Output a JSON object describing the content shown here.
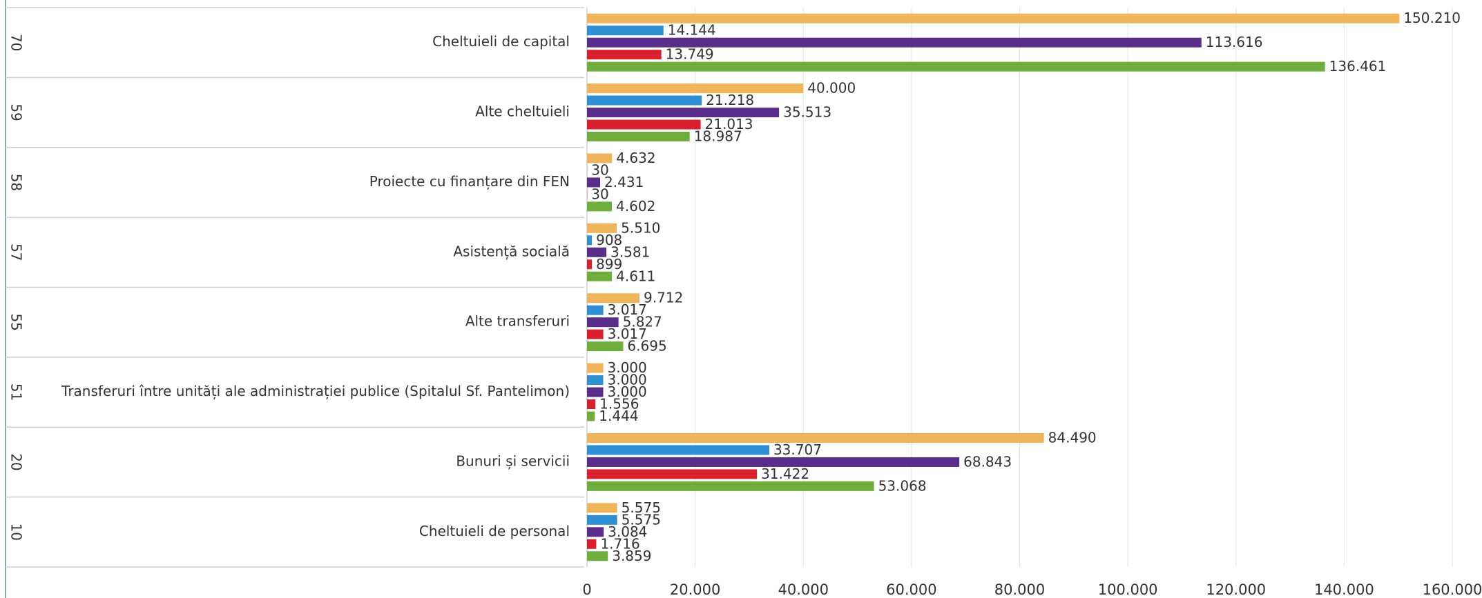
{
  "chart_data": {
    "type": "bar",
    "orientation": "horizontal",
    "codes": [
      "70",
      "59",
      "58",
      "57",
      "55",
      "51",
      "20",
      "10"
    ],
    "categories": [
      "Cheltuieli de capital",
      "Alte cheltuieli",
      "Proiecte cu finanțare din FEN",
      "Asistență socială",
      "Alte transferuri",
      "Transferuri între unități ale administrației publice (Spitalul Sf. Pantelimon)",
      "Bunuri și servicii",
      "Cheltuieli de personal"
    ],
    "series": [
      {
        "color": "#f0b55a",
        "values": [
          150210,
          40000,
          4632,
          5510,
          9712,
          3000,
          84490,
          5575
        ],
        "value_labels": [
          "150.210",
          "40.000",
          "4.632",
          "5.510",
          "9.712",
          "3.000",
          "84.490",
          "5.575"
        ]
      },
      {
        "color": "#2e8fd4",
        "values": [
          14144,
          21218,
          30,
          908,
          3017,
          3000,
          33707,
          5575
        ],
        "value_labels": [
          "14.144",
          "21.218",
          "30",
          "908",
          "3.017",
          "3.000",
          "33.707",
          "5.575"
        ]
      },
      {
        "color": "#5b2d8a",
        "values": [
          113616,
          35513,
          2431,
          3581,
          5827,
          3000,
          68843,
          3084
        ],
        "value_labels": [
          "113.616",
          "35.513",
          "2.431",
          "3.581",
          "5.827",
          "3.000",
          "68.843",
          "3.084"
        ]
      },
      {
        "color": "#d9202e",
        "values": [
          13749,
          21013,
          30,
          899,
          3017,
          1556,
          31422,
          1716
        ],
        "value_labels": [
          "13.749",
          "21.013",
          "30",
          "899",
          "3.017",
          "1.556",
          "31.422",
          "1.716"
        ]
      },
      {
        "color": "#6fae3c",
        "values": [
          136461,
          18987,
          4602,
          4611,
          6695,
          1444,
          53068,
          3859
        ],
        "value_labels": [
          "136.461",
          "18.987",
          "4.602",
          "4.611",
          "6.695",
          "1.444",
          "53.068",
          "3.859"
        ]
      }
    ],
    "xlim": [
      0,
      160000
    ],
    "xticks": [
      0,
      {
        "value": 20000,
        "label": "20.000"
      },
      {
        "value": 40000,
        "label": "40.000"
      },
      {
        "value": 60000,
        "label": "60.000"
      },
      {
        "value": 80000,
        "label": "80.000"
      },
      {
        "value": 100000,
        "label": "100.000"
      },
      {
        "value": 120000,
        "label": "120.000"
      },
      {
        "value": 140000,
        "label": "140.000"
      },
      {
        "value": 160000,
        "label": "160.000"
      }
    ],
    "grid": true
  }
}
